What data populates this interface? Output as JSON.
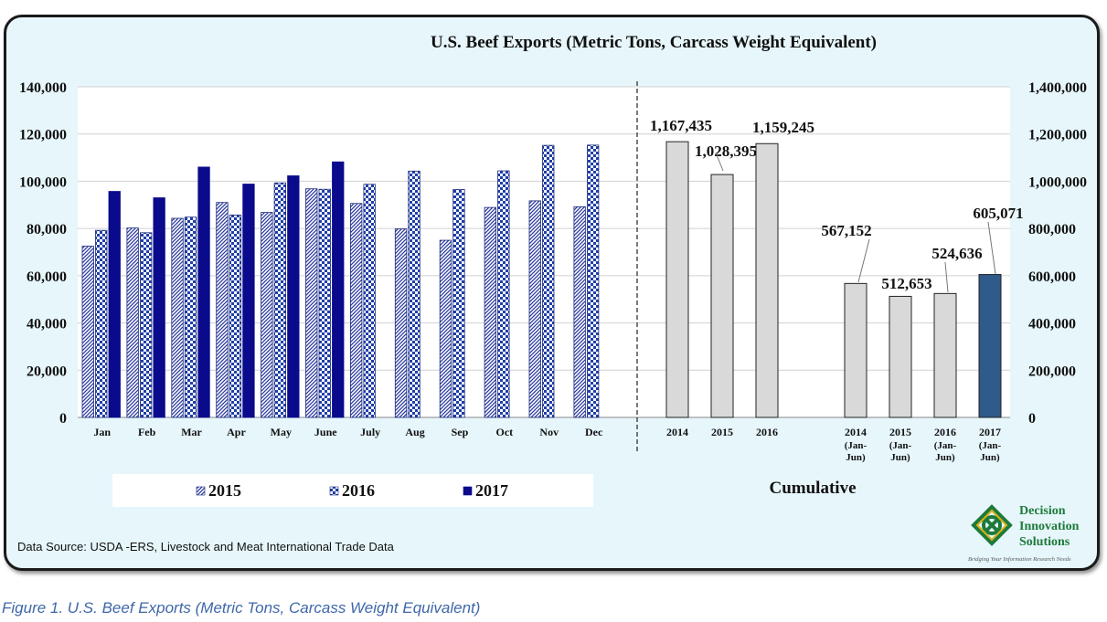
{
  "caption": "Figure 1. U.S. Beef Exports (Metric Tons, Carcass Weight Equivalent)",
  "source": "Data Source: USDA -ERS, Livestock and Meat International Trade Data",
  "logo": {
    "name_lines": [
      "Decision",
      "Innovation",
      "Solutions"
    ],
    "tagline": "Bridging Your Information Research Needs",
    "color": "#1e7a3a"
  },
  "chart_data": [
    {
      "type": "bar",
      "title": "U.S. Beef Exports  (Metric Tons, Carcass Weight Equivalent)",
      "categories": [
        "Jan",
        "Feb",
        "Mar",
        "Apr",
        "May",
        "June",
        "July",
        "Aug",
        "Sep",
        "Oct",
        "Nov",
        "Dec"
      ],
      "series": [
        {
          "name": "2015",
          "color": "#2b3aa0",
          "pattern": "diagonal-hatch",
          "values": [
            72500,
            80200,
            84300,
            91000,
            86800,
            96800,
            90600,
            79800,
            75000,
            88900,
            91700,
            89200
          ]
        },
        {
          "name": "2016",
          "color": "#1f3fa8",
          "pattern": "checker",
          "values": [
            79200,
            78200,
            84800,
            85700,
            99300,
            96600,
            98700,
            104300,
            96500,
            104400,
            115200,
            115300
          ]
        },
        {
          "name": "2017",
          "color": "#0a0a8c",
          "pattern": "solid",
          "values": [
            95700,
            93000,
            106000,
            98800,
            102300,
            108200,
            null,
            null,
            null,
            null,
            null,
            null
          ]
        }
      ],
      "ylim": [
        0,
        140000
      ],
      "yticks": [
        "0",
        "20,000",
        "40,000",
        "60,000",
        "80,000",
        "100,000",
        "120,000",
        "140,000"
      ],
      "grid": true,
      "legend": "bottom"
    },
    {
      "type": "bar",
      "title": "Cumulative",
      "categories": [
        "2014",
        "2015",
        "2016",
        "2014 (Jan-Jun)",
        "2015 (Jan-Jun)",
        "2016 (Jan-Jun)",
        "2017 (Jan-Jun)"
      ],
      "values": [
        1167435,
        1028395,
        1159245,
        567152,
        512653,
        524636,
        605071
      ],
      "labels": [
        "1,167,435",
        "1,028,395",
        "1,159,245",
        "567,152",
        "512,653",
        "524,636",
        "605,071"
      ],
      "colors": [
        "#d9d9d9",
        "#d9d9d9",
        "#d9d9d9",
        "#d9d9d9",
        "#d9d9d9",
        "#d9d9d9",
        "#2e5b8a"
      ],
      "ylim": [
        0,
        1400000
      ],
      "yticks": [
        "0",
        "200,000",
        "400,000",
        "600,000",
        "800,000",
        "1,000,000",
        "1,200,000",
        "1,400,000"
      ]
    }
  ]
}
